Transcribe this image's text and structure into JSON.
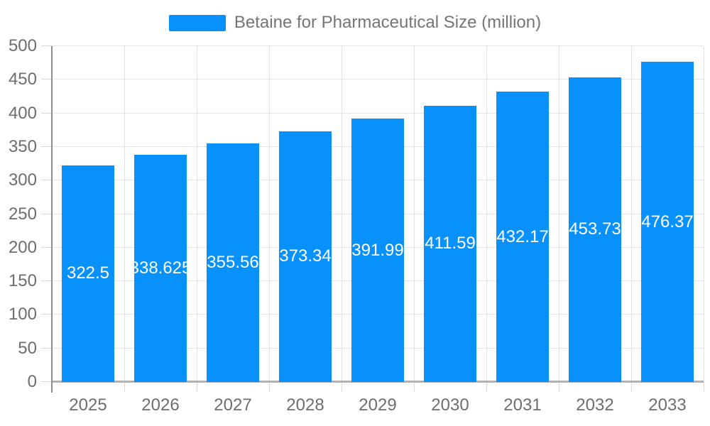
{
  "legend": {
    "label": "Betaine for Pharmaceutical Size (million)"
  },
  "colors": {
    "bar": "#0991fb",
    "legend_text": "#757575",
    "axis_label": "#6e6e6e",
    "value_label": "#ffffff",
    "grid_line": "#e4e4e4",
    "tick_line": "#dadada",
    "y_axis_line": "#8f8f8f",
    "x_axis_line": "#b3b3b3",
    "background": "#ffffff"
  },
  "chart_data": {
    "type": "bar",
    "title": "Betaine for Pharmaceutical Size (million)",
    "series_name": "Betaine for Pharmaceutical Size (million)",
    "categories": [
      "2025",
      "2026",
      "2027",
      "2028",
      "2029",
      "2030",
      "2031",
      "2032",
      "2033"
    ],
    "values": [
      322.5,
      338.625,
      355.56,
      373.34,
      391.99,
      411.59,
      432.17,
      453.73,
      476.37
    ],
    "value_label_texts": [
      "322.5",
      "338.625",
      "355.56",
      "373.34",
      "391.99",
      "411.59",
      "432.17",
      "453.73",
      "476.37"
    ],
    "xlabel": "",
    "ylabel": "",
    "ylim": [
      0,
      500
    ],
    "ytick_step": 50,
    "ytick_labels": [
      "0",
      "50",
      "100",
      "150",
      "200",
      "250",
      "300",
      "350",
      "400",
      "450",
      "500"
    ],
    "grid": true,
    "legend_position": "top-center",
    "value_labels": "inside-middle-center"
  }
}
